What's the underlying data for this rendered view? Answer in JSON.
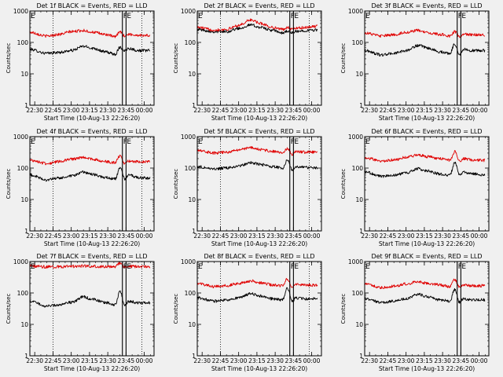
{
  "figure": {
    "background": "#f0f0f0",
    "colors": {
      "events": "#000000",
      "lld": "#e00000",
      "axes": "#000000"
    }
  },
  "chart_data": [
    {
      "type": "line",
      "title": "Det 1f BLACK = Events, RED = LLD",
      "xlabel": "Start Time (10-Aug-13 22:26:20)",
      "ylabel": "Counts/sec",
      "yscale": "log",
      "xlim": [
        "22:26",
        "00:08"
      ],
      "ylim": [
        1,
        1000
      ],
      "x_ticks": [
        "22:30",
        "22:45",
        "23:00",
        "23:15",
        "23:30",
        "23:45",
        "00:00"
      ],
      "y_ticks": [
        "1",
        "10",
        "100",
        "1000"
      ],
      "markers": [
        {
          "time": "22:45",
          "style": "dotted",
          "label": ""
        },
        {
          "time": "23:42",
          "style": "solid",
          "label": "F"
        },
        {
          "time": "23:45",
          "style": "solid",
          "label": "E"
        },
        {
          "time": "23:58",
          "style": "dotted",
          "label": ""
        }
      ],
      "corner_label": "E",
      "series": [
        {
          "name": "Events",
          "color": "#000000",
          "x": [
            "22:26",
            "22:40",
            "22:50",
            "23:00",
            "23:10",
            "23:18",
            "23:28",
            "23:36",
            "23:40",
            "23:44",
            "23:47",
            "23:55",
            "00:05"
          ],
          "values": [
            60,
            45,
            48,
            55,
            75,
            65,
            50,
            42,
            70,
            55,
            65,
            55,
            55
          ]
        },
        {
          "name": "LLD",
          "color": "#e00000",
          "x": [
            "22:26",
            "22:40",
            "22:50",
            "23:00",
            "23:10",
            "23:18",
            "23:28",
            "23:36",
            "23:40",
            "23:44",
            "23:47",
            "23:55",
            "00:05"
          ],
          "values": [
            210,
            160,
            180,
            220,
            240,
            210,
            180,
            150,
            220,
            160,
            180,
            170,
            165
          ]
        }
      ]
    },
    {
      "type": "line",
      "title": "Det 2f BLACK = Events, RED = LLD",
      "xlabel": "Start Time (10-Aug-13 22:26:20)",
      "ylabel": "Counts/sec",
      "yscale": "log",
      "xlim": [
        "22:26",
        "00:08"
      ],
      "ylim": [
        1,
        1000
      ],
      "x_ticks": [
        "22:30",
        "22:45",
        "23:00",
        "23:15",
        "23:30",
        "23:45",
        "00:00"
      ],
      "y_ticks": [
        "1",
        "10",
        "100",
        "1000"
      ],
      "markers": [
        {
          "time": "22:45",
          "style": "dotted",
          "label": ""
        },
        {
          "time": "23:42",
          "style": "solid",
          "label": "F"
        },
        {
          "time": "23:45",
          "style": "solid",
          "label": "E"
        },
        {
          "time": "23:58",
          "style": "dotted",
          "label": ""
        }
      ],
      "corner_label": "E",
      "series": [
        {
          "name": "Events",
          "color": "#000000",
          "x": [
            "22:26",
            "22:40",
            "22:50",
            "23:00",
            "23:10",
            "23:18",
            "23:28",
            "23:36",
            "23:40",
            "23:44",
            "23:47",
            "23:55",
            "00:05"
          ],
          "values": [
            260,
            220,
            220,
            280,
            360,
            300,
            240,
            200,
            230,
            200,
            220,
            240,
            250
          ]
        },
        {
          "name": "LLD",
          "color": "#e00000",
          "x": [
            "22:26",
            "22:40",
            "22:50",
            "23:00",
            "23:10",
            "23:18",
            "23:28",
            "23:36",
            "23:40",
            "23:44",
            "23:47",
            "23:55",
            "00:05"
          ],
          "values": [
            300,
            250,
            260,
            350,
            520,
            400,
            300,
            260,
            300,
            260,
            280,
            300,
            330
          ]
        }
      ]
    },
    {
      "type": "line",
      "title": "Det 3f BLACK = Events, RED = LLD",
      "xlabel": "Start Time (10-Aug-13 22:26:20)",
      "ylabel": "Counts/sec",
      "yscale": "log",
      "xlim": [
        "22:26",
        "00:08"
      ],
      "ylim": [
        1,
        1000
      ],
      "x_ticks": [
        "22:30",
        "22:45",
        "23:00",
        "23:15",
        "23:30",
        "23:45",
        "00:00"
      ],
      "y_ticks": [
        "1",
        "10",
        "100",
        "1000"
      ],
      "markers": [
        {
          "time": "23:42",
          "style": "solid",
          "label": "F"
        },
        {
          "time": "23:45",
          "style": "solid",
          "label": "E"
        }
      ],
      "corner_label": "E",
      "series": [
        {
          "name": "Events",
          "color": "#000000",
          "x": [
            "22:26",
            "22:40",
            "22:50",
            "23:00",
            "23:10",
            "23:18",
            "23:28",
            "23:36",
            "23:40",
            "23:44",
            "23:47",
            "23:55",
            "00:05"
          ],
          "values": [
            55,
            40,
            45,
            55,
            80,
            65,
            50,
            45,
            90,
            40,
            60,
            55,
            55
          ]
        },
        {
          "name": "LLD",
          "color": "#e00000",
          "x": [
            "22:26",
            "22:40",
            "22:50",
            "23:00",
            "23:10",
            "23:18",
            "23:28",
            "23:36",
            "23:40",
            "23:44",
            "23:47",
            "23:55",
            "00:05"
          ],
          "values": [
            200,
            160,
            175,
            210,
            240,
            200,
            180,
            160,
            220,
            150,
            180,
            175,
            170
          ]
        }
      ]
    },
    {
      "type": "line",
      "title": "Det 4f BLACK = Events, RED = LLD",
      "xlabel": "Start Time (10-Aug-13 22:26:20)",
      "ylabel": "Counts/sec",
      "yscale": "log",
      "xlim": [
        "22:26",
        "00:08"
      ],
      "ylim": [
        1,
        1000
      ],
      "x_ticks": [
        "22:30",
        "22:45",
        "23:00",
        "23:15",
        "23:30",
        "23:45",
        "00:00"
      ],
      "y_ticks": [
        "1",
        "10",
        "100",
        "1000"
      ],
      "markers": [
        {
          "time": "22:45",
          "style": "dotted",
          "label": ""
        },
        {
          "time": "23:42",
          "style": "solid",
          "label": "F"
        },
        {
          "time": "23:45",
          "style": "solid",
          "label": "E"
        },
        {
          "time": "23:58",
          "style": "dotted",
          "label": ""
        }
      ],
      "corner_label": "E",
      "series": [
        {
          "name": "Events",
          "color": "#000000",
          "x": [
            "22:26",
            "22:40",
            "22:50",
            "23:00",
            "23:10",
            "23:18",
            "23:28",
            "23:36",
            "23:40",
            "23:44",
            "23:47",
            "23:55",
            "00:05"
          ],
          "values": [
            60,
            42,
            48,
            55,
            75,
            62,
            50,
            45,
            100,
            45,
            60,
            50,
            48
          ]
        },
        {
          "name": "LLD",
          "color": "#e00000",
          "x": [
            "22:26",
            "22:40",
            "22:50",
            "23:00",
            "23:10",
            "23:18",
            "23:28",
            "23:36",
            "23:40",
            "23:44",
            "23:47",
            "23:55",
            "00:05"
          ],
          "values": [
            180,
            140,
            160,
            190,
            220,
            190,
            160,
            150,
            250,
            140,
            170,
            160,
            160
          ]
        }
      ]
    },
    {
      "type": "line",
      "title": "Det 5f BLACK = Events, RED = LLD",
      "xlabel": "Start Time (10-Aug-13 22:26:20)",
      "ylabel": "Counts/sec",
      "yscale": "log",
      "xlim": [
        "22:26",
        "00:08"
      ],
      "ylim": [
        1,
        1000
      ],
      "x_ticks": [
        "22:30",
        "22:45",
        "23:00",
        "23:15",
        "23:30",
        "23:45",
        "00:00"
      ],
      "y_ticks": [
        "1",
        "10",
        "100",
        "1000"
      ],
      "markers": [
        {
          "time": "22:45",
          "style": "dotted",
          "label": ""
        },
        {
          "time": "23:42",
          "style": "solid",
          "label": "F"
        },
        {
          "time": "23:45",
          "style": "solid",
          "label": "E"
        },
        {
          "time": "23:58",
          "style": "dotted",
          "label": ""
        }
      ],
      "corner_label": "E",
      "series": [
        {
          "name": "Events",
          "color": "#000000",
          "x": [
            "22:26",
            "22:40",
            "22:50",
            "23:00",
            "23:10",
            "23:18",
            "23:28",
            "23:36",
            "23:40",
            "23:44",
            "23:47",
            "23:55",
            "00:05"
          ],
          "values": [
            110,
            95,
            100,
            115,
            150,
            130,
            110,
            100,
            180,
            90,
            110,
            105,
            100
          ]
        },
        {
          "name": "LLD",
          "color": "#e00000",
          "x": [
            "22:26",
            "22:40",
            "22:50",
            "23:00",
            "23:10",
            "23:18",
            "23:28",
            "23:36",
            "23:40",
            "23:44",
            "23:47",
            "23:55",
            "00:05"
          ],
          "values": [
            380,
            300,
            320,
            380,
            450,
            390,
            340,
            300,
            420,
            280,
            330,
            320,
            320
          ]
        }
      ]
    },
    {
      "type": "line",
      "title": "Det 6f BLACK = Events, RED = LLD",
      "xlabel": "Start Time (10-Aug-13 22:26:20)",
      "ylabel": "Counts/sec",
      "yscale": "log",
      "xlim": [
        "22:26",
        "00:08"
      ],
      "ylim": [
        1,
        1000
      ],
      "x_ticks": [
        "22:30",
        "22:45",
        "23:00",
        "23:15",
        "23:30",
        "23:45",
        "00:00"
      ],
      "y_ticks": [
        "1",
        "10",
        "100",
        "1000"
      ],
      "markers": [],
      "corner_label": "E",
      "series": [
        {
          "name": "Events",
          "color": "#000000",
          "x": [
            "22:26",
            "22:40",
            "22:50",
            "23:00",
            "23:10",
            "23:18",
            "23:28",
            "23:36",
            "23:40",
            "23:44",
            "23:47",
            "23:55",
            "00:05"
          ],
          "values": [
            75,
            55,
            60,
            70,
            95,
            80,
            65,
            60,
            150,
            60,
            75,
            65,
            60
          ]
        },
        {
          "name": "LLD",
          "color": "#e00000",
          "x": [
            "22:26",
            "22:40",
            "22:50",
            "23:00",
            "23:10",
            "23:18",
            "23:28",
            "23:36",
            "23:40",
            "23:44",
            "23:47",
            "23:55",
            "00:05"
          ],
          "values": [
            210,
            170,
            180,
            220,
            260,
            230,
            200,
            180,
            330,
            170,
            200,
            180,
            175
          ]
        }
      ]
    },
    {
      "type": "line",
      "title": "Det 7f BLACK = Events, RED = LLD",
      "xlabel": "Start Time (10-Aug-13 22:26:20)",
      "ylabel": "Counts/sec",
      "yscale": "log",
      "xlim": [
        "22:26",
        "00:08"
      ],
      "ylim": [
        1,
        1000
      ],
      "x_ticks": [
        "22:30",
        "22:45",
        "23:00",
        "23:15",
        "23:30",
        "23:45",
        "00:00"
      ],
      "y_ticks": [
        "1",
        "10",
        "100",
        "1000"
      ],
      "markers": [
        {
          "time": "22:45",
          "style": "dotted",
          "label": ""
        },
        {
          "time": "23:42",
          "style": "solid",
          "label": "F"
        },
        {
          "time": "23:45",
          "style": "solid",
          "label": "E"
        },
        {
          "time": "23:58",
          "style": "dotted",
          "label": ""
        }
      ],
      "corner_label": "E",
      "series": [
        {
          "name": "Events",
          "color": "#000000",
          "x": [
            "22:26",
            "22:40",
            "22:50",
            "23:00",
            "23:10",
            "23:18",
            "23:28",
            "23:36",
            "23:40",
            "23:44",
            "23:47",
            "23:55",
            "00:05"
          ],
          "values": [
            55,
            38,
            42,
            50,
            75,
            62,
            50,
            42,
            110,
            40,
            55,
            48,
            48
          ]
        },
        {
          "name": "LLD",
          "color": "#e00000",
          "x": [
            "22:26",
            "22:40",
            "22:50",
            "23:00",
            "23:10",
            "23:18",
            "23:28",
            "23:36",
            "23:40",
            "23:44",
            "23:47",
            "23:55",
            "00:05"
          ],
          "values": [
            720,
            680,
            690,
            700,
            720,
            700,
            690,
            680,
            900,
            650,
            700,
            690,
            680
          ]
        }
      ]
    },
    {
      "type": "line",
      "title": "Det 8f BLACK = Events, RED = LLD",
      "xlabel": "Start Time (10-Aug-13 22:26:20)",
      "ylabel": "Counts/sec",
      "yscale": "log",
      "xlim": [
        "22:26",
        "00:08"
      ],
      "ylim": [
        1,
        1000
      ],
      "x_ticks": [
        "22:30",
        "22:45",
        "23:00",
        "23:15",
        "23:30",
        "23:45",
        "00:00"
      ],
      "y_ticks": [
        "1",
        "10",
        "100",
        "1000"
      ],
      "markers": [
        {
          "time": "22:45",
          "style": "dotted",
          "label": ""
        },
        {
          "time": "23:42",
          "style": "solid",
          "label": "F"
        },
        {
          "time": "23:45",
          "style": "solid",
          "label": "E"
        },
        {
          "time": "23:58",
          "style": "dotted",
          "label": ""
        }
      ],
      "corner_label": "E",
      "series": [
        {
          "name": "Events",
          "color": "#000000",
          "x": [
            "22:26",
            "22:40",
            "22:50",
            "23:00",
            "23:10",
            "23:18",
            "23:28",
            "23:36",
            "23:40",
            "23:44",
            "23:47",
            "23:55",
            "00:05"
          ],
          "values": [
            70,
            55,
            60,
            70,
            95,
            80,
            65,
            60,
            140,
            55,
            70,
            65,
            65
          ]
        },
        {
          "name": "LLD",
          "color": "#e00000",
          "x": [
            "22:26",
            "22:40",
            "22:50",
            "23:00",
            "23:10",
            "23:18",
            "23:28",
            "23:36",
            "23:40",
            "23:44",
            "23:47",
            "23:55",
            "00:05"
          ],
          "values": [
            200,
            160,
            170,
            200,
            240,
            210,
            180,
            170,
            280,
            160,
            190,
            180,
            175
          ]
        }
      ]
    },
    {
      "type": "line",
      "title": "Det 9f BLACK = Events, RED = LLD",
      "xlabel": "Start Time (10-Aug-13 22:26:20)",
      "ylabel": "Counts/sec",
      "yscale": "log",
      "xlim": [
        "22:26",
        "00:08"
      ],
      "ylim": [
        1,
        1000
      ],
      "x_ticks": [
        "22:30",
        "22:45",
        "23:00",
        "23:15",
        "23:30",
        "23:45",
        "00:00"
      ],
      "y_ticks": [
        "1",
        "10",
        "100",
        "1000"
      ],
      "markers": [
        {
          "time": "23:42",
          "style": "solid",
          "label": "F"
        },
        {
          "time": "23:45",
          "style": "solid",
          "label": "E"
        }
      ],
      "corner_label": "E",
      "series": [
        {
          "name": "Events",
          "color": "#000000",
          "x": [
            "22:26",
            "22:40",
            "22:50",
            "23:00",
            "23:10",
            "23:18",
            "23:28",
            "23:36",
            "23:40",
            "23:44",
            "23:47",
            "23:55",
            "00:05"
          ],
          "values": [
            65,
            50,
            55,
            65,
            90,
            75,
            60,
            55,
            130,
            50,
            65,
            60,
            60
          ]
        },
        {
          "name": "LLD",
          "color": "#e00000",
          "x": [
            "22:26",
            "22:40",
            "22:50",
            "23:00",
            "23:10",
            "23:18",
            "23:28",
            "23:36",
            "23:40",
            "23:44",
            "23:47",
            "23:55",
            "00:05"
          ],
          "values": [
            190,
            150,
            165,
            195,
            230,
            200,
            180,
            160,
            270,
            150,
            180,
            170,
            170
          ]
        }
      ]
    }
  ]
}
